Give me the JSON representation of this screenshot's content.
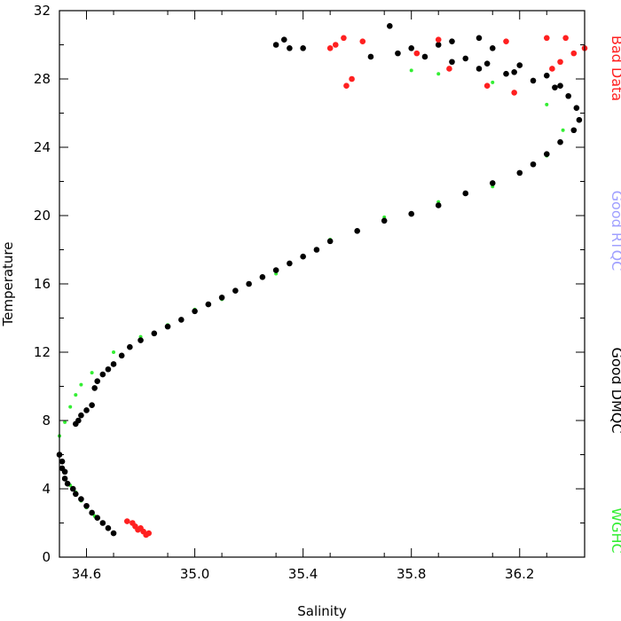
{
  "chart_data": {
    "type": "scatter",
    "xlabel": "Salinity",
    "ylabel": "Temperature",
    "xlim": [
      34.5,
      36.44
    ],
    "ylim": [
      0,
      32
    ],
    "x_ticks": [
      34.6,
      35.0,
      35.4,
      35.8,
      36.2
    ],
    "x_tick_labels": [
      "34.6",
      "35.0",
      "35.4",
      "35.8",
      "36.2"
    ],
    "y_ticks": [
      0,
      4,
      8,
      12,
      16,
      20,
      24,
      28,
      32
    ],
    "y_tick_labels": [
      "0",
      "4",
      "8",
      "12",
      "16",
      "20",
      "24",
      "28",
      "32"
    ],
    "grid": false,
    "legend_placement": "right-side-vertical",
    "legend": [
      {
        "label": "Bad Data",
        "color": "#ff2020"
      },
      {
        "label": "Good RTQC",
        "color": "#a0a0ff"
      },
      {
        "label": "Good DMQC",
        "color": "#000000"
      },
      {
        "label": "WGHC",
        "color": "#33ee33"
      }
    ],
    "series": [
      {
        "name": "Good DMQC",
        "color": "#000000",
        "points": [
          [
            34.5,
            6.0
          ],
          [
            34.51,
            5.6
          ],
          [
            34.51,
            5.2
          ],
          [
            34.52,
            5.0
          ],
          [
            34.52,
            4.6
          ],
          [
            34.53,
            4.3
          ],
          [
            34.55,
            4.0
          ],
          [
            34.56,
            3.7
          ],
          [
            34.58,
            3.4
          ],
          [
            34.6,
            3.0
          ],
          [
            34.62,
            2.6
          ],
          [
            34.64,
            2.3
          ],
          [
            34.66,
            2.0
          ],
          [
            34.68,
            1.7
          ],
          [
            34.7,
            1.4
          ],
          [
            34.56,
            7.8
          ],
          [
            34.57,
            8.0
          ],
          [
            34.58,
            8.3
          ],
          [
            34.6,
            8.6
          ],
          [
            34.62,
            8.9
          ],
          [
            34.63,
            9.9
          ],
          [
            34.64,
            10.3
          ],
          [
            34.66,
            10.7
          ],
          [
            34.68,
            11.0
          ],
          [
            34.7,
            11.3
          ],
          [
            34.73,
            11.8
          ],
          [
            34.76,
            12.3
          ],
          [
            34.8,
            12.7
          ],
          [
            34.85,
            13.1
          ],
          [
            34.9,
            13.5
          ],
          [
            34.95,
            13.9
          ],
          [
            35.0,
            14.4
          ],
          [
            35.05,
            14.8
          ],
          [
            35.1,
            15.2
          ],
          [
            35.15,
            15.6
          ],
          [
            35.2,
            16.0
          ],
          [
            35.25,
            16.4
          ],
          [
            35.3,
            16.8
          ],
          [
            35.35,
            17.2
          ],
          [
            35.4,
            17.6
          ],
          [
            35.45,
            18.0
          ],
          [
            35.5,
            18.5
          ],
          [
            35.6,
            19.1
          ],
          [
            35.7,
            19.7
          ],
          [
            35.8,
            20.1
          ],
          [
            35.9,
            20.6
          ],
          [
            36.0,
            21.3
          ],
          [
            36.1,
            21.9
          ],
          [
            36.2,
            22.5
          ],
          [
            36.25,
            23.0
          ],
          [
            36.3,
            23.6
          ],
          [
            36.35,
            24.3
          ],
          [
            36.4,
            25.0
          ],
          [
            36.42,
            25.6
          ],
          [
            36.41,
            26.3
          ],
          [
            36.38,
            27.0
          ],
          [
            36.33,
            27.5
          ],
          [
            36.25,
            27.9
          ],
          [
            36.15,
            28.3
          ],
          [
            36.05,
            28.6
          ],
          [
            35.95,
            29.0
          ],
          [
            35.85,
            29.3
          ],
          [
            35.75,
            29.5
          ],
          [
            35.65,
            29.3
          ],
          [
            35.95,
            30.2
          ],
          [
            36.05,
            30.4
          ],
          [
            36.1,
            29.8
          ],
          [
            35.9,
            30.0
          ],
          [
            35.8,
            29.8
          ],
          [
            35.33,
            30.3
          ],
          [
            35.3,
            30.0
          ],
          [
            35.35,
            29.8
          ],
          [
            35.4,
            29.8
          ],
          [
            35.72,
            31.1
          ],
          [
            36.2,
            28.8
          ],
          [
            36.3,
            28.2
          ],
          [
            36.35,
            27.6
          ],
          [
            36.0,
            29.2
          ],
          [
            36.08,
            28.9
          ],
          [
            36.18,
            28.4
          ]
        ]
      },
      {
        "name": "Bad Data",
        "color": "#ff2020",
        "points": [
          [
            34.75,
            2.1
          ],
          [
            34.77,
            2.0
          ],
          [
            34.78,
            1.8
          ],
          [
            34.8,
            1.7
          ],
          [
            34.81,
            1.5
          ],
          [
            34.83,
            1.4
          ],
          [
            34.79,
            1.6
          ],
          [
            34.82,
            1.3
          ],
          [
            35.5,
            29.8
          ],
          [
            35.55,
            30.4
          ],
          [
            35.58,
            28.0
          ],
          [
            35.56,
            27.6
          ],
          [
            35.52,
            30.0
          ],
          [
            35.62,
            30.2
          ],
          [
            35.82,
            29.5
          ],
          [
            35.9,
            30.3
          ],
          [
            36.08,
            27.6
          ],
          [
            36.15,
            30.2
          ],
          [
            36.3,
            30.4
          ],
          [
            36.37,
            30.4
          ],
          [
            36.4,
            29.5
          ],
          [
            36.35,
            29.0
          ],
          [
            36.44,
            29.8
          ],
          [
            36.32,
            28.6
          ],
          [
            36.18,
            27.2
          ],
          [
            35.94,
            28.6
          ]
        ]
      },
      {
        "name": "WGHC",
        "color": "#33ee33",
        "points": [
          [
            34.5,
            7.1
          ],
          [
            34.52,
            7.9
          ],
          [
            34.54,
            8.8
          ],
          [
            34.56,
            9.5
          ],
          [
            34.58,
            10.1
          ],
          [
            34.62,
            10.8
          ],
          [
            34.7,
            12.0
          ],
          [
            34.8,
            12.9
          ],
          [
            34.9,
            13.6
          ],
          [
            35.0,
            14.5
          ],
          [
            35.1,
            15.1
          ],
          [
            35.3,
            16.6
          ],
          [
            35.5,
            18.6
          ],
          [
            35.7,
            19.9
          ],
          [
            35.9,
            20.8
          ],
          [
            36.1,
            21.7
          ],
          [
            36.3,
            23.5
          ],
          [
            36.36,
            25.0
          ],
          [
            36.3,
            26.5
          ],
          [
            36.1,
            27.8
          ],
          [
            35.9,
            28.3
          ],
          [
            35.8,
            28.5
          ],
          [
            34.52,
            4.6
          ],
          [
            34.54,
            4.2
          ],
          [
            34.56,
            3.8
          ],
          [
            34.58,
            3.3
          ],
          [
            34.6,
            2.9
          ],
          [
            34.63,
            2.4
          ]
        ]
      }
    ]
  }
}
